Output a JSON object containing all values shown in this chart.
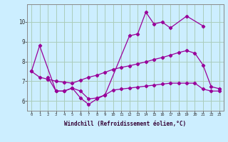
{
  "xlabel": "Windchill (Refroidissement éolien,°C)",
  "bg_color": "#cceeff",
  "grid_color": "#aaccbb",
  "line_color": "#990099",
  "series": {
    "s1": {
      "x": [
        0,
        1,
        3,
        4,
        5,
        6,
        7,
        8,
        9,
        12,
        13,
        14,
        15,
        16,
        17,
        19,
        21
      ],
      "y": [
        7.5,
        8.8,
        6.5,
        6.5,
        6.65,
        6.15,
        5.82,
        6.1,
        6.3,
        9.3,
        9.4,
        10.5,
        9.9,
        10.0,
        9.7,
        10.3,
        9.8
      ]
    },
    "s2": {
      "x": [
        0,
        1,
        2,
        3,
        4,
        5,
        6,
        7,
        8,
        9,
        10,
        11,
        12,
        13,
        14,
        15,
        16,
        17,
        18,
        19,
        20,
        21,
        22,
        23
      ],
      "y": [
        7.5,
        7.2,
        7.1,
        7.0,
        6.95,
        6.9,
        7.05,
        7.2,
        7.3,
        7.45,
        7.6,
        7.7,
        7.78,
        7.88,
        7.98,
        8.1,
        8.2,
        8.32,
        8.45,
        8.55,
        8.42,
        7.82,
        6.72,
        6.62
      ]
    },
    "s3": {
      "x": [
        2,
        3,
        4,
        5,
        6,
        7,
        8,
        9,
        10,
        11,
        12,
        13,
        14,
        15,
        16,
        17,
        18,
        19,
        20,
        21,
        22,
        23
      ],
      "y": [
        7.2,
        6.5,
        6.5,
        6.65,
        6.5,
        6.1,
        6.15,
        6.3,
        6.55,
        6.6,
        6.65,
        6.7,
        6.75,
        6.8,
        6.85,
        6.9,
        6.9,
        6.9,
        6.9,
        6.6,
        6.5,
        6.5
      ]
    }
  },
  "ylim": [
    5.5,
    10.9
  ],
  "yticks": [
    6,
    7,
    8,
    9,
    10
  ],
  "xticks": [
    0,
    1,
    2,
    3,
    4,
    5,
    6,
    7,
    8,
    9,
    10,
    11,
    12,
    13,
    14,
    15,
    16,
    17,
    18,
    19,
    20,
    21,
    22,
    23
  ],
  "xtick_labels": [
    "0",
    "1",
    "2",
    "3",
    "4",
    "5",
    "6",
    "7",
    "8",
    "9",
    "10",
    "11",
    "12",
    "13",
    "14",
    "15",
    "16",
    "17",
    "18",
    "19",
    "20",
    "21",
    "22",
    "23"
  ]
}
